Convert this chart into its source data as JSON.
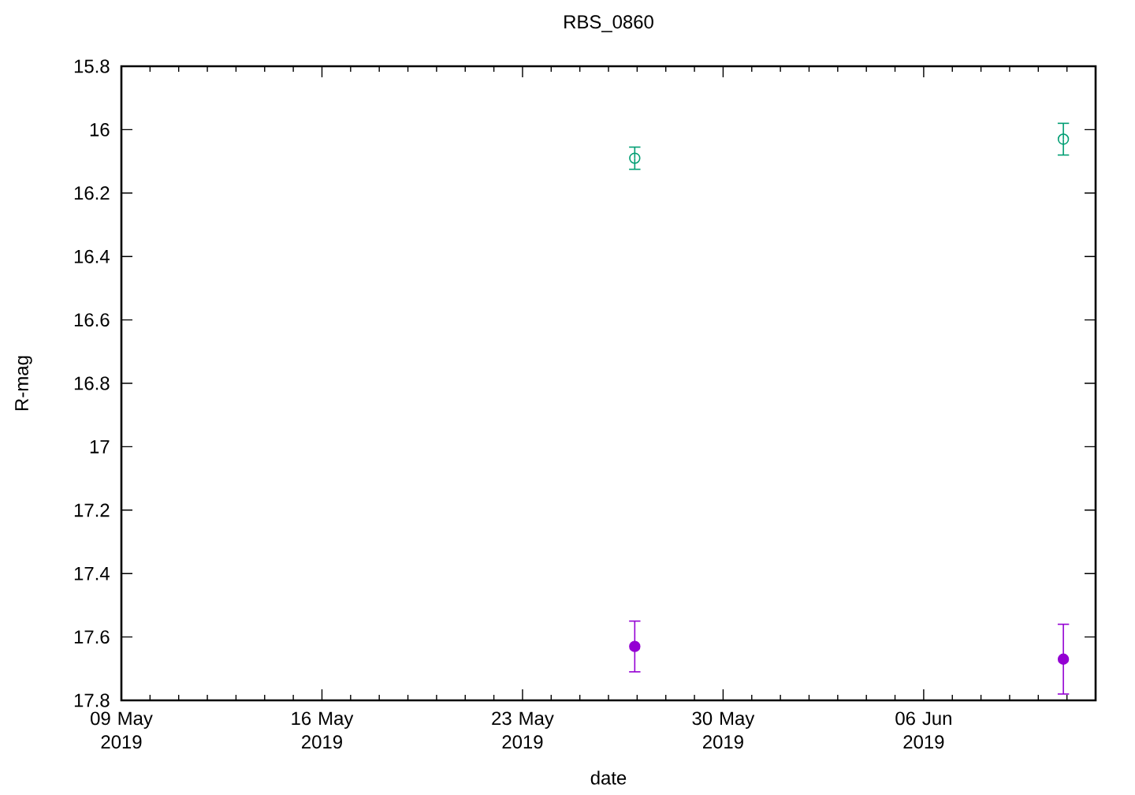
{
  "chart_data": {
    "type": "scatter",
    "title": "RBS_0860",
    "xlabel": "date",
    "ylabel": "R-mag",
    "x": [
      "2019-05-26T22:00",
      "2019-06-10T21:00"
    ],
    "series": [
      {
        "color": "#9400d3",
        "values": [
          17.63,
          17.67
        ],
        "errors": [
          0.08,
          0.11
        ]
      },
      {
        "color": "#009e73",
        "values": [
          16.09,
          16.03
        ],
        "errors": [
          0.035,
          0.05
        ]
      }
    ],
    "xlim": [
      "2019-05-09",
      "2019-06-12"
    ],
    "xticks": [
      {
        "value": "2019-05-09",
        "label": "09 May 2019"
      },
      {
        "value": "2019-05-10",
        "label": null
      },
      {
        "value": "2019-05-11",
        "label": null
      },
      {
        "value": "2019-05-12",
        "label": null
      },
      {
        "value": "2019-05-13",
        "label": null
      },
      {
        "value": "2019-05-14",
        "label": null
      },
      {
        "value": "2019-05-15",
        "label": null
      },
      {
        "value": "2019-05-16",
        "label": "16 May 2019"
      },
      {
        "value": "2019-05-17",
        "label": null
      },
      {
        "value": "2019-05-18",
        "label": null
      },
      {
        "value": "2019-05-19",
        "label": null
      },
      {
        "value": "2019-05-20",
        "label": null
      },
      {
        "value": "2019-05-21",
        "label": null
      },
      {
        "value": "2019-05-22",
        "label": null
      },
      {
        "value": "2019-05-23",
        "label": "23 May 2019"
      },
      {
        "value": "2019-05-24",
        "label": null
      },
      {
        "value": "2019-05-25",
        "label": null
      },
      {
        "value": "2019-05-26",
        "label": null
      },
      {
        "value": "2019-05-27",
        "label": null
      },
      {
        "value": "2019-05-28",
        "label": null
      },
      {
        "value": "2019-05-29",
        "label": null
      },
      {
        "value": "2019-05-30",
        "label": "30 May 2019"
      },
      {
        "value": "2019-05-31",
        "label": null
      },
      {
        "value": "2019-06-01",
        "label": null
      },
      {
        "value": "2019-06-02",
        "label": null
      },
      {
        "value": "2019-06-03",
        "label": null
      },
      {
        "value": "2019-06-04",
        "label": null
      },
      {
        "value": "2019-06-05",
        "label": null
      },
      {
        "value": "2019-06-06",
        "label": "06 Jun 2019"
      },
      {
        "value": "2019-06-07",
        "label": null
      },
      {
        "value": "2019-06-08",
        "label": null
      },
      {
        "value": "2019-06-09",
        "label": null
      },
      {
        "value": "2019-06-10",
        "label": null
      },
      {
        "value": "2019-06-11",
        "label": null
      },
      {
        "value": "2019-06-12",
        "label": null
      }
    ],
    "ylim": [
      17.8,
      15.8
    ],
    "yticks": [
      15.8,
      16,
      16.2,
      16.4,
      16.6,
      16.8,
      17,
      17.2,
      17.4,
      17.6,
      17.8
    ],
    "marker": "circle"
  }
}
